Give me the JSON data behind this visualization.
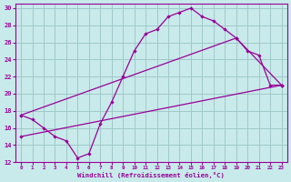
{
  "xlabel": "Windchill (Refroidissement éolien,°C)",
  "bg_color": "#c8eaea",
  "grid_color": "#a0c8c8",
  "line_color": "#990099",
  "xlim": [
    -0.5,
    23.5
  ],
  "ylim": [
    12,
    30.5
  ],
  "xticks": [
    0,
    1,
    2,
    3,
    4,
    5,
    6,
    7,
    8,
    9,
    10,
    11,
    12,
    13,
    14,
    15,
    16,
    17,
    18,
    19,
    20,
    21,
    22,
    23
  ],
  "yticks": [
    12,
    14,
    16,
    18,
    20,
    22,
    24,
    26,
    28,
    30
  ],
  "line1_x": [
    0,
    1,
    2,
    3,
    4,
    5,
    6,
    7,
    8,
    9,
    10,
    11,
    12,
    13,
    14,
    15,
    16,
    17,
    18,
    19,
    20,
    21,
    22,
    23
  ],
  "line1_y": [
    17.5,
    17.0,
    16.0,
    15.0,
    14.5,
    12.5,
    13.0,
    16.5,
    19.0,
    22.0,
    25.0,
    27.0,
    27.5,
    29.0,
    29.5,
    30.0,
    29.0,
    28.5,
    27.5,
    26.5,
    25.0,
    24.5,
    21.0,
    21.0
  ],
  "line2_x": [
    0,
    19,
    23
  ],
  "line2_y": [
    17.5,
    26.5,
    21.0
  ],
  "line3_x": [
    0,
    23
  ],
  "line3_y": [
    15.0,
    21.0
  ]
}
